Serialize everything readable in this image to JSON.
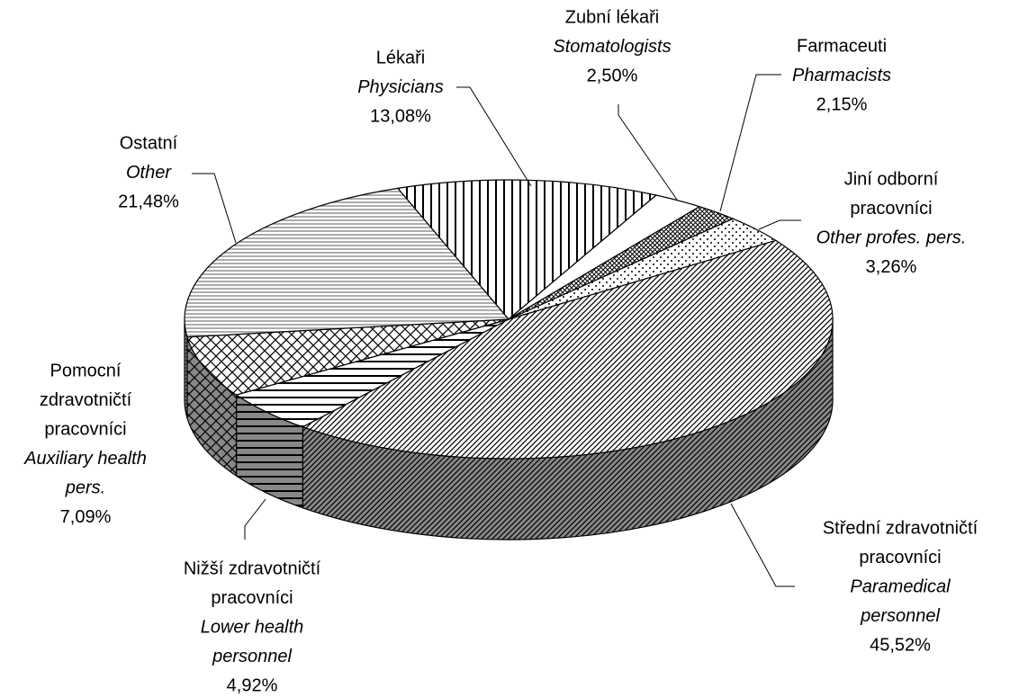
{
  "chart_data": {
    "type": "pie",
    "three_d": true,
    "categories": [
      [
        "Lékaři"
      ],
      [
        "Zubní lékaři"
      ],
      [
        "Farmaceuti"
      ],
      [
        "Jiní odborní",
        "pracovníci"
      ],
      [
        "Střední zdravotničtí",
        "pracovníci"
      ],
      [
        "Nižší zdravotničtí",
        "pracovníci"
      ],
      [
        "Pomocní",
        "zdravotničtí",
        "pracovníci"
      ],
      [
        "Ostatní"
      ]
    ],
    "categories_en": [
      [
        "Physicians"
      ],
      [
        "Stomatologists"
      ],
      [
        "Pharmacists"
      ],
      [
        "Other profes. pers."
      ],
      [
        "Paramedical",
        "personnel"
      ],
      [
        "Lower health",
        "personnel"
      ],
      [
        "Auxiliary health",
        "pers."
      ],
      [
        "Other"
      ]
    ],
    "values": [
      13.08,
      2.5,
      2.15,
      3.26,
      45.52,
      4.92,
      7.09,
      21.48
    ],
    "value_labels": [
      "13,08%",
      "2,50%",
      "2,15%",
      "3,26%",
      "45,52%",
      "4,92%",
      "7,09%",
      "21,48%"
    ],
    "patterns": [
      "vertical",
      "white",
      "dense-cross",
      "dots",
      "diagonal",
      "horizontal",
      "crosshatch",
      "fine-horizontal"
    ]
  }
}
